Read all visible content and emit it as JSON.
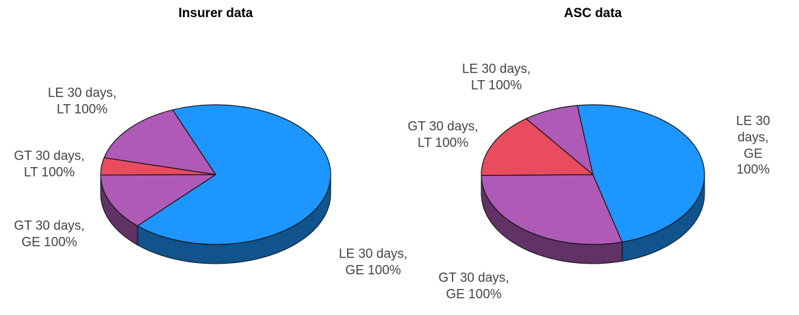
{
  "chart_data": [
    {
      "type": "pie3d",
      "title": "Insurer data",
      "categories": [
        "LE 30 days,\nLT 100%",
        "GT 30 days,\nLT 100%",
        "GT 30 days,\nGE 100%",
        "LE 30 days,\nGE 100%"
      ],
      "values": [
        15,
        4,
        13,
        68
      ],
      "colors": [
        "#b05ab8",
        "#e84c5e",
        "#b05ab8",
        "#1e96ff"
      ]
    },
    {
      "type": "pie3d",
      "title": "ASC data",
      "categories": [
        "LE 30 days,\nLT 100%",
        "GT 30 days,\nLT 100%",
        "GT 30 days,\nGE 100%",
        "LE 30 days,\nGE 100%"
      ],
      "values": [
        8,
        15,
        29,
        48
      ],
      "colors": [
        "#b05ab8",
        "#e84c5e",
        "#b05ab8",
        "#1e96ff"
      ]
    }
  ]
}
